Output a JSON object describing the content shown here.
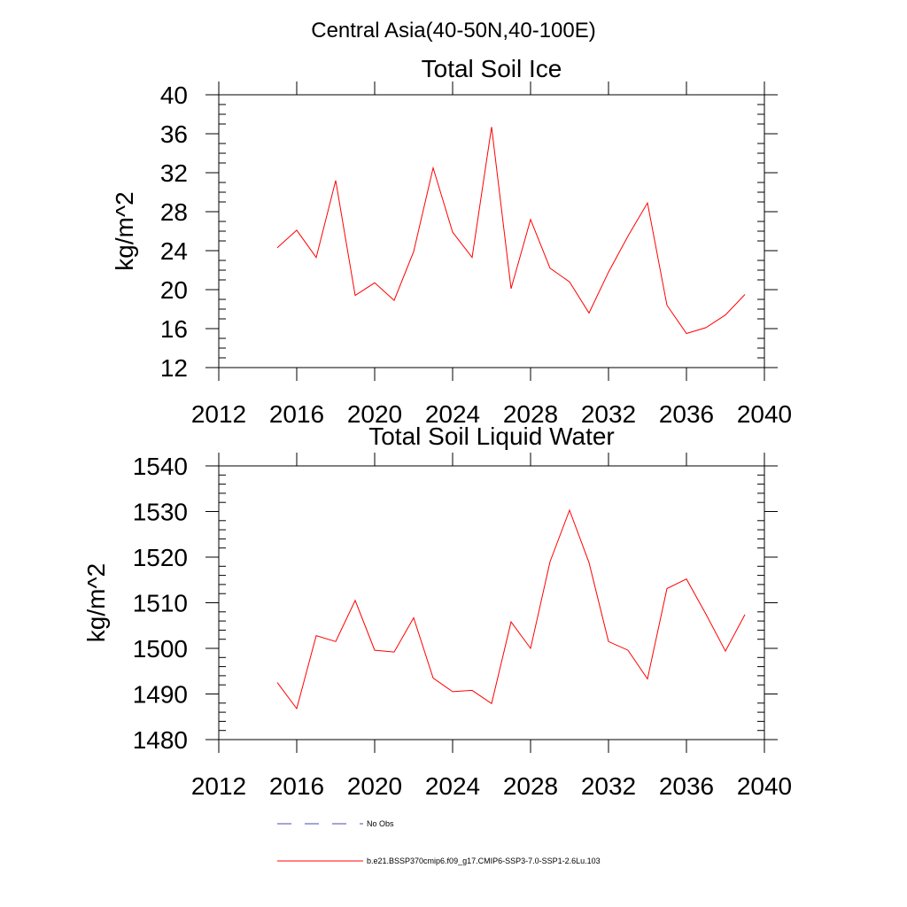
{
  "figure": {
    "title": "Central Asia(40-50N,40-100E)"
  },
  "chart_data": [
    {
      "type": "line",
      "title": "Total Soil Ice",
      "xlabel": "",
      "ylabel": "kg/m^2",
      "xlim": [
        2012,
        2040
      ],
      "ylim": [
        12,
        40
      ],
      "xticks": [
        2012,
        2016,
        2020,
        2024,
        2028,
        2032,
        2036,
        2040
      ],
      "yticks": [
        12,
        16,
        20,
        24,
        28,
        32,
        36,
        40
      ],
      "grid": false,
      "x": [
        2015,
        2016,
        2017,
        2018,
        2019,
        2020,
        2021,
        2022,
        2023,
        2024,
        2025,
        2026,
        2027,
        2028,
        2029,
        2030,
        2031,
        2032,
        2033,
        2034,
        2035,
        2036,
        2037,
        2038,
        2039
      ],
      "series": [
        {
          "name": "b.e21.BSSP370cmip6.f09_g17.CMIP6-SSP3-7.0-SSP1-2.6Lu.103",
          "color": "#ff0000",
          "values": [
            24.3,
            26.1,
            23.3,
            31.2,
            19.4,
            20.7,
            18.9,
            23.9,
            32.5,
            25.9,
            23.3,
            36.7,
            20.1,
            27.2,
            22.2,
            20.8,
            17.6,
            21.8,
            25.5,
            28.9,
            18.4,
            15.5,
            16.1,
            17.4,
            19.5
          ]
        }
      ]
    },
    {
      "type": "line",
      "title": "Total Soil Liquid Water",
      "xlabel": "",
      "ylabel": "kg/m^2",
      "xlim": [
        2012,
        2040
      ],
      "ylim": [
        1480,
        1540
      ],
      "xticks": [
        2012,
        2016,
        2020,
        2024,
        2028,
        2032,
        2036,
        2040
      ],
      "yticks": [
        1480,
        1490,
        1500,
        1510,
        1520,
        1530,
        1540
      ],
      "grid": false,
      "x": [
        2015,
        2016,
        2017,
        2018,
        2019,
        2020,
        2021,
        2022,
        2023,
        2024,
        2025,
        2026,
        2027,
        2028,
        2029,
        2030,
        2031,
        2032,
        2033,
        2034,
        2035,
        2036,
        2037,
        2038,
        2039
      ],
      "series": [
        {
          "name": "b.e21.BSSP370cmip6.f09_g17.CMIP6-SSP3-7.0-SSP1-2.6Lu.103",
          "color": "#ff0000",
          "values": [
            1492.5,
            1486.8,
            1502.8,
            1501.5,
            1510.5,
            1499.6,
            1499.2,
            1506.7,
            1493.5,
            1490.5,
            1490.8,
            1487.9,
            1505.8,
            1500.0,
            1519.0,
            1530.3,
            1518.8,
            1501.5,
            1499.6,
            1493.3,
            1513.1,
            1515.2,
            1507.5,
            1499.4,
            1507.4
          ]
        }
      ]
    }
  ],
  "legend": {
    "entries": [
      {
        "label": "No Obs",
        "color": "#4a4aa8",
        "style": "dashed"
      },
      {
        "label": "b.e21.BSSP370cmip6.f09_g17.CMIP6-SSP3-7.0-SSP1-2.6Lu.103",
        "color": "#ff0000",
        "style": "solid"
      }
    ]
  }
}
